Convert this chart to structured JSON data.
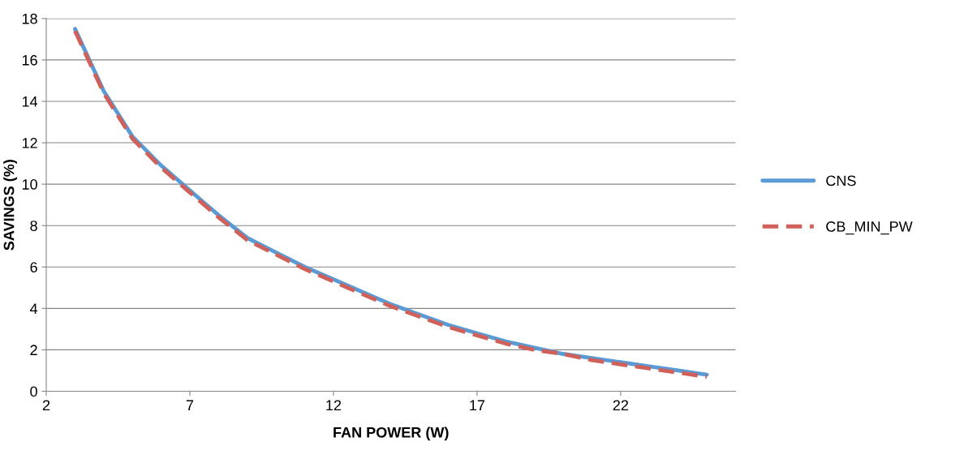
{
  "chart_data": {
    "type": "line",
    "xlabel": "FAN POWER (W)",
    "ylabel": "SAVINGS (%)",
    "xlim": [
      2,
      26
    ],
    "xticks": [
      2,
      7,
      12,
      17,
      22
    ],
    "ylim": [
      0,
      18
    ],
    "yticks": [
      0,
      2,
      4,
      6,
      8,
      10,
      12,
      14,
      16,
      18
    ],
    "grid": "y",
    "legend": "right",
    "marker": "none",
    "series": [
      {
        "name": "CNS",
        "color": "#5b9bd5",
        "line_style": "solid",
        "x": [
          3,
          4,
          5,
          6,
          7,
          8,
          9,
          10,
          11,
          12,
          13,
          14,
          15,
          16,
          17,
          18,
          19,
          20,
          21,
          22,
          23,
          24,
          25
        ],
        "values": [
          17.5,
          14.5,
          12.3,
          10.9,
          9.7,
          8.5,
          7.4,
          6.7,
          6.0,
          5.4,
          4.8,
          4.2,
          3.7,
          3.2,
          2.8,
          2.4,
          2.1,
          1.8,
          1.6,
          1.4,
          1.2,
          1.0,
          0.8
        ]
      },
      {
        "name": "CB_MIN_PW",
        "color": "#d0605a",
        "line_style": "dashed",
        "x": [
          3,
          4,
          5,
          6,
          7,
          8,
          9,
          10,
          11,
          12,
          13,
          14,
          15,
          16,
          17,
          18,
          19,
          20,
          21,
          22,
          23,
          24,
          25
        ],
        "values": [
          17.4,
          14.4,
          12.2,
          10.8,
          9.6,
          8.4,
          7.3,
          6.6,
          5.9,
          5.3,
          4.7,
          4.1,
          3.6,
          3.1,
          2.7,
          2.3,
          2.0,
          1.8,
          1.5,
          1.3,
          1.1,
          0.9,
          0.7
        ]
      }
    ]
  }
}
